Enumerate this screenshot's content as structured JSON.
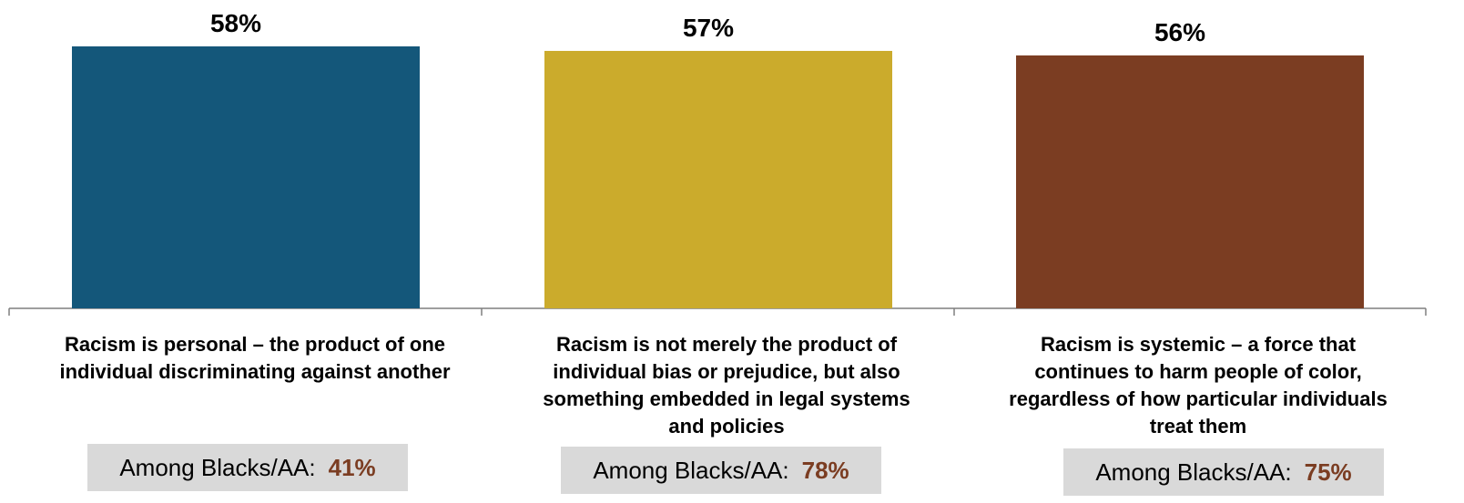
{
  "chart_data": {
    "type": "bar",
    "categories": [
      "Racism is personal – the product of one individual discriminating against another",
      "Racism is not merely the product of individual bias or prejudice, but also something embedded in legal systems and policies",
      "Racism is systemic – a force that continues to harm people of color, regardless of how particular individuals treat them"
    ],
    "category_lines": [
      [
        "Racism is personal – the product of one",
        "individual discriminating against another"
      ],
      [
        "Racism is not merely the product of",
        "individual bias or prejudice, but also",
        "something embedded in legal systems",
        "and policies"
      ],
      [
        "Racism is systemic – a force that",
        "continues to harm people of color,",
        "regardless of how particular individuals",
        "treat them"
      ]
    ],
    "values": [
      58,
      57,
      56
    ],
    "data_labels": [
      "58%",
      "57%",
      "56%"
    ],
    "colors": [
      "#14577a",
      "#cbab2c",
      "#7b3d22"
    ],
    "ylim": [
      0,
      58
    ],
    "grid": false,
    "legend": "none",
    "subgroup": {
      "prefix": "Among Blacks/AA:",
      "values": [
        "41%",
        "78%",
        "75%"
      ],
      "value_color": "#7b3d22",
      "box_color": "#d9d9d9"
    }
  }
}
